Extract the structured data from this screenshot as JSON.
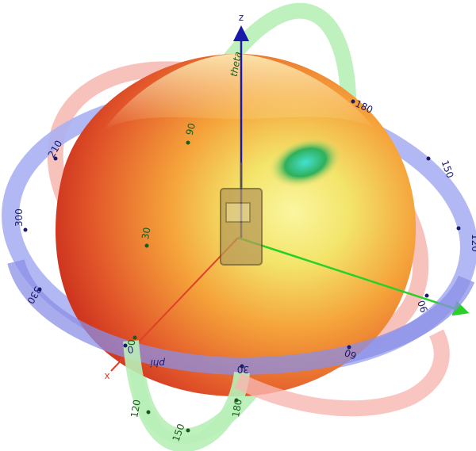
{
  "axes": {
    "z_label": "z",
    "x_label": "x",
    "z_color": "#1a1aa8",
    "x_color": "#e0402a",
    "y_color": "#2ad02a"
  },
  "rings": {
    "azimuth": {
      "name": "phi",
      "color": "#aab0f2",
      "label_color": "#1a1a6a",
      "ticks": [
        "0",
        "30",
        "60",
        "90",
        "120",
        "150",
        "180",
        "210",
        "300",
        "330"
      ]
    },
    "elevation": {
      "name": "theta",
      "color": "#b8f0b8",
      "label_color": "#1a5a1a",
      "ticks": [
        "0",
        "30",
        "60",
        "90",
        "120",
        "150",
        "180"
      ]
    },
    "third": {
      "color": "#f7b7b0"
    }
  },
  "pattern": {
    "colors": {
      "hot": "#d9361a",
      "warm": "#f5a23a",
      "mid": "#f3e46a",
      "light": "#fbf6a0",
      "null_cyan": "#44e0d2",
      "null_green": "#2fb05a"
    }
  },
  "device": {
    "name": "handset",
    "icon": "phone-icon"
  }
}
